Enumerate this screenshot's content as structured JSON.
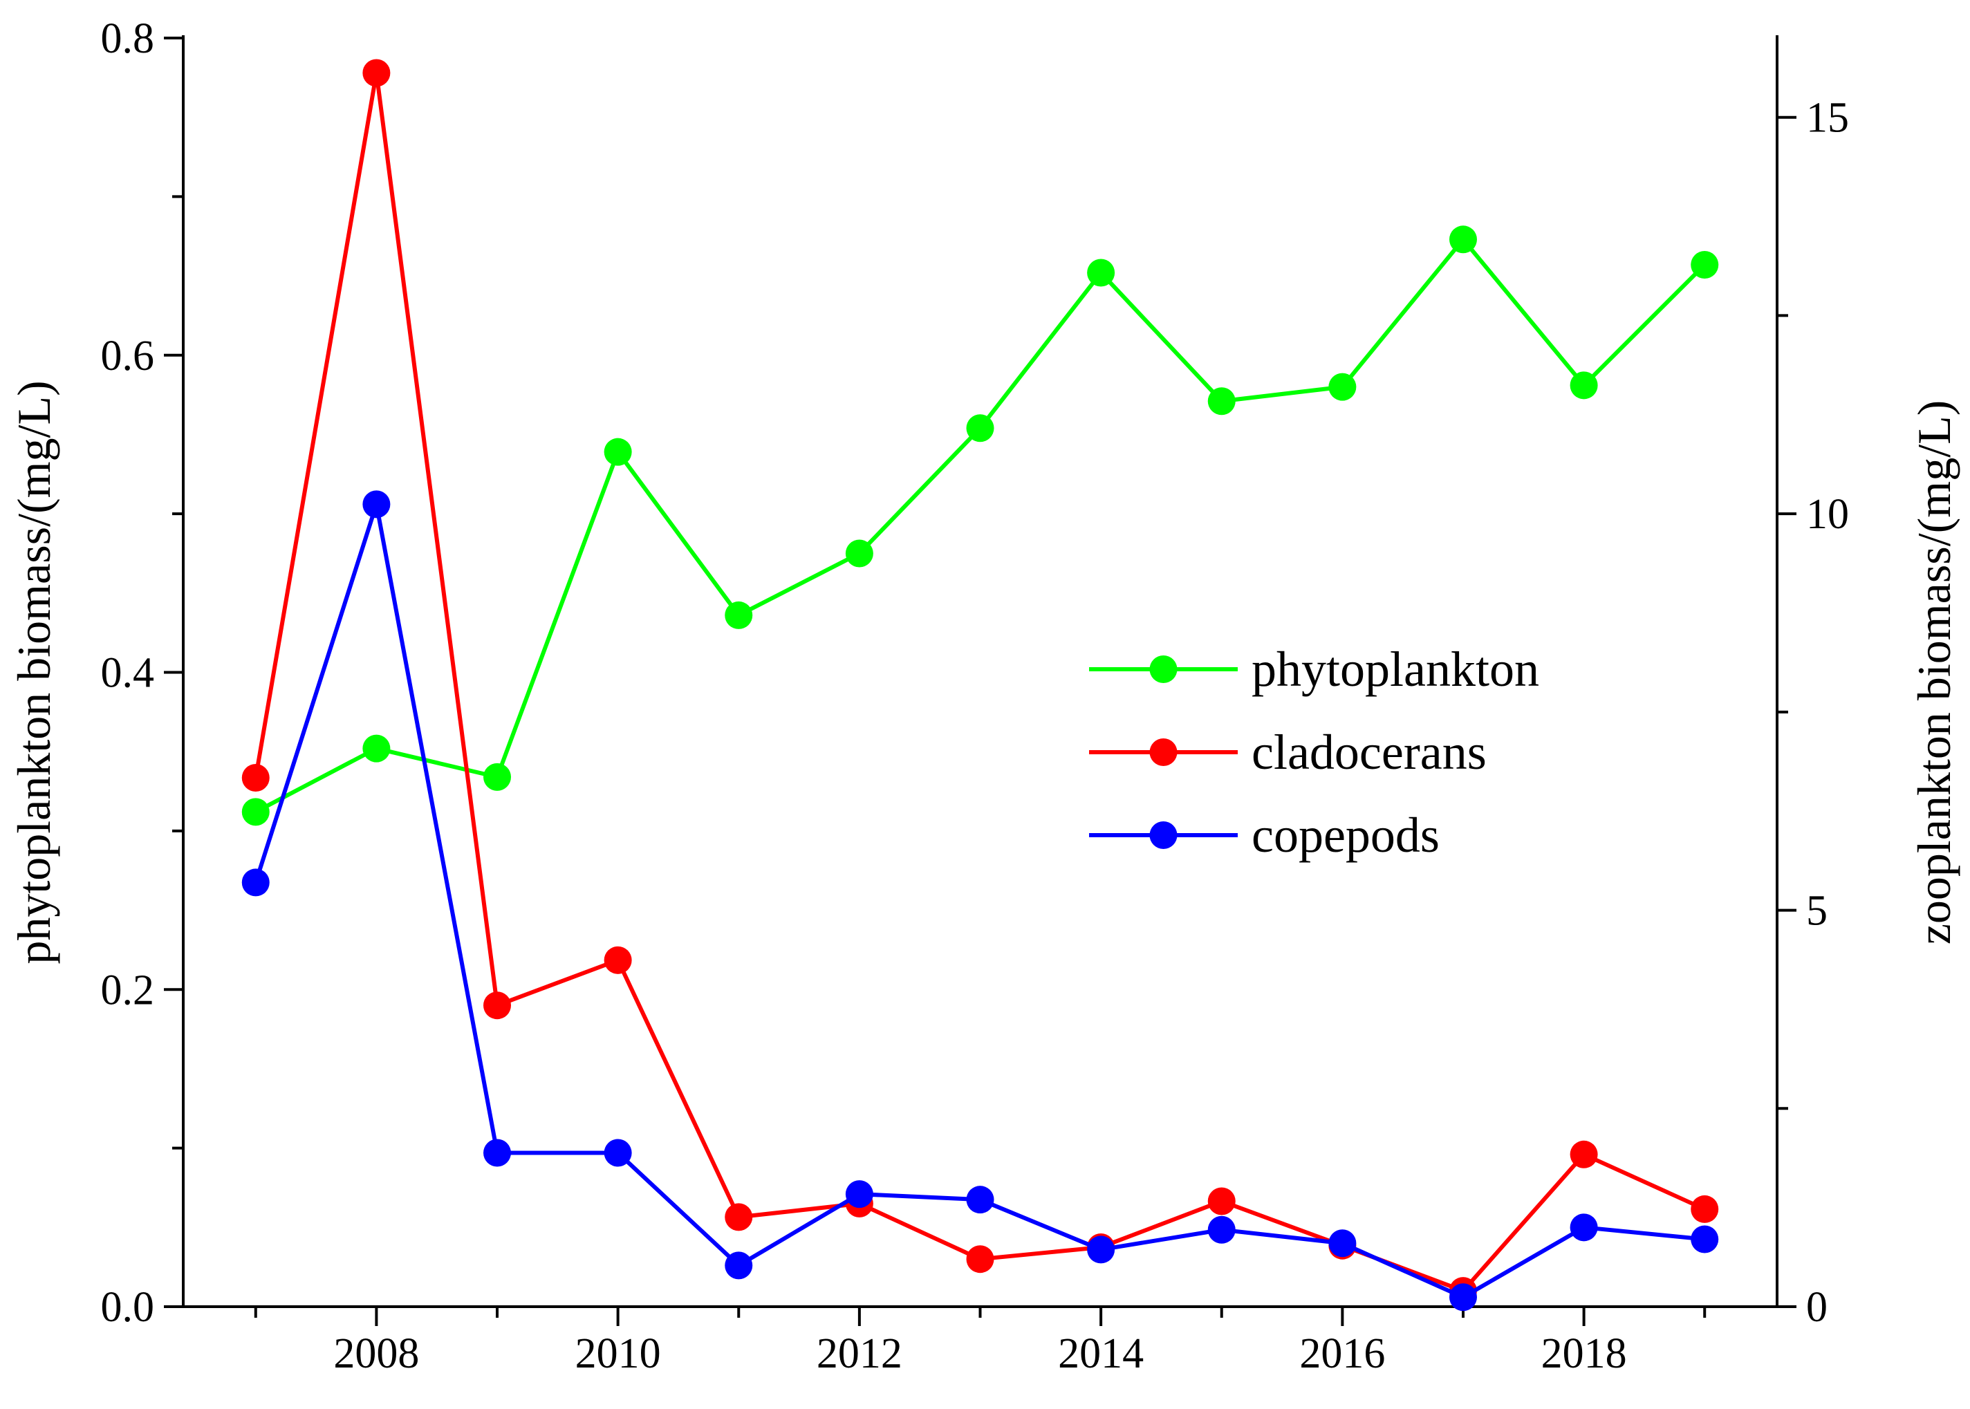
{
  "chart_data": {
    "type": "line",
    "title": "",
    "x": [
      2007,
      2008,
      2009,
      2010,
      2011,
      2012,
      2013,
      2014,
      2015,
      2016,
      2017,
      2018,
      2019
    ],
    "xlim": [
      2006.4,
      2019.6
    ],
    "xticks": [
      2008,
      2010,
      2012,
      2014,
      2016,
      2018
    ],
    "xtick_labels": [
      "2008",
      "2010",
      "2012",
      "2014",
      "2016",
      "2018"
    ],
    "xminor": [
      2007,
      2009,
      2011,
      2013,
      2015,
      2017,
      2019
    ],
    "xlabel": "",
    "y_left": {
      "label": "phytoplankton biomass/(mg/L)",
      "lim": [
        0,
        0.8
      ],
      "ticks": [
        0,
        0.2,
        0.4,
        0.6,
        0.8
      ],
      "tick_labels": [
        "0.0",
        "0.2",
        "0.4",
        "0.6",
        "0.8"
      ]
    },
    "y_right": {
      "label": "zooplankton biomass/(mg/L)",
      "lim": [
        0,
        16
      ],
      "ticks": [
        0,
        5,
        10,
        15
      ],
      "tick_labels": [
        "0",
        "5",
        "10",
        "15"
      ]
    },
    "grid": false,
    "legend_position": "center-right",
    "series": [
      {
        "name": "phytoplankton",
        "axis": "left",
        "color": "#00ff00",
        "values": [
          0.312,
          0.352,
          0.334,
          0.539,
          0.436,
          0.475,
          0.554,
          0.652,
          0.571,
          0.58,
          0.673,
          0.581,
          0.657
        ]
      },
      {
        "name": "cladocerans",
        "axis": "right",
        "color": "#ff0000",
        "values": [
          6.67,
          15.56,
          3.8,
          4.37,
          1.13,
          1.3,
          0.6,
          0.75,
          1.33,
          0.77,
          0.2,
          1.92,
          1.23
        ]
      },
      {
        "name": "copepods",
        "axis": "right",
        "color": "#0000ff",
        "values": [
          5.35,
          10.12,
          1.94,
          1.94,
          0.52,
          1.42,
          1.35,
          0.72,
          0.97,
          0.8,
          0.12,
          1.0,
          0.85
        ]
      }
    ]
  }
}
